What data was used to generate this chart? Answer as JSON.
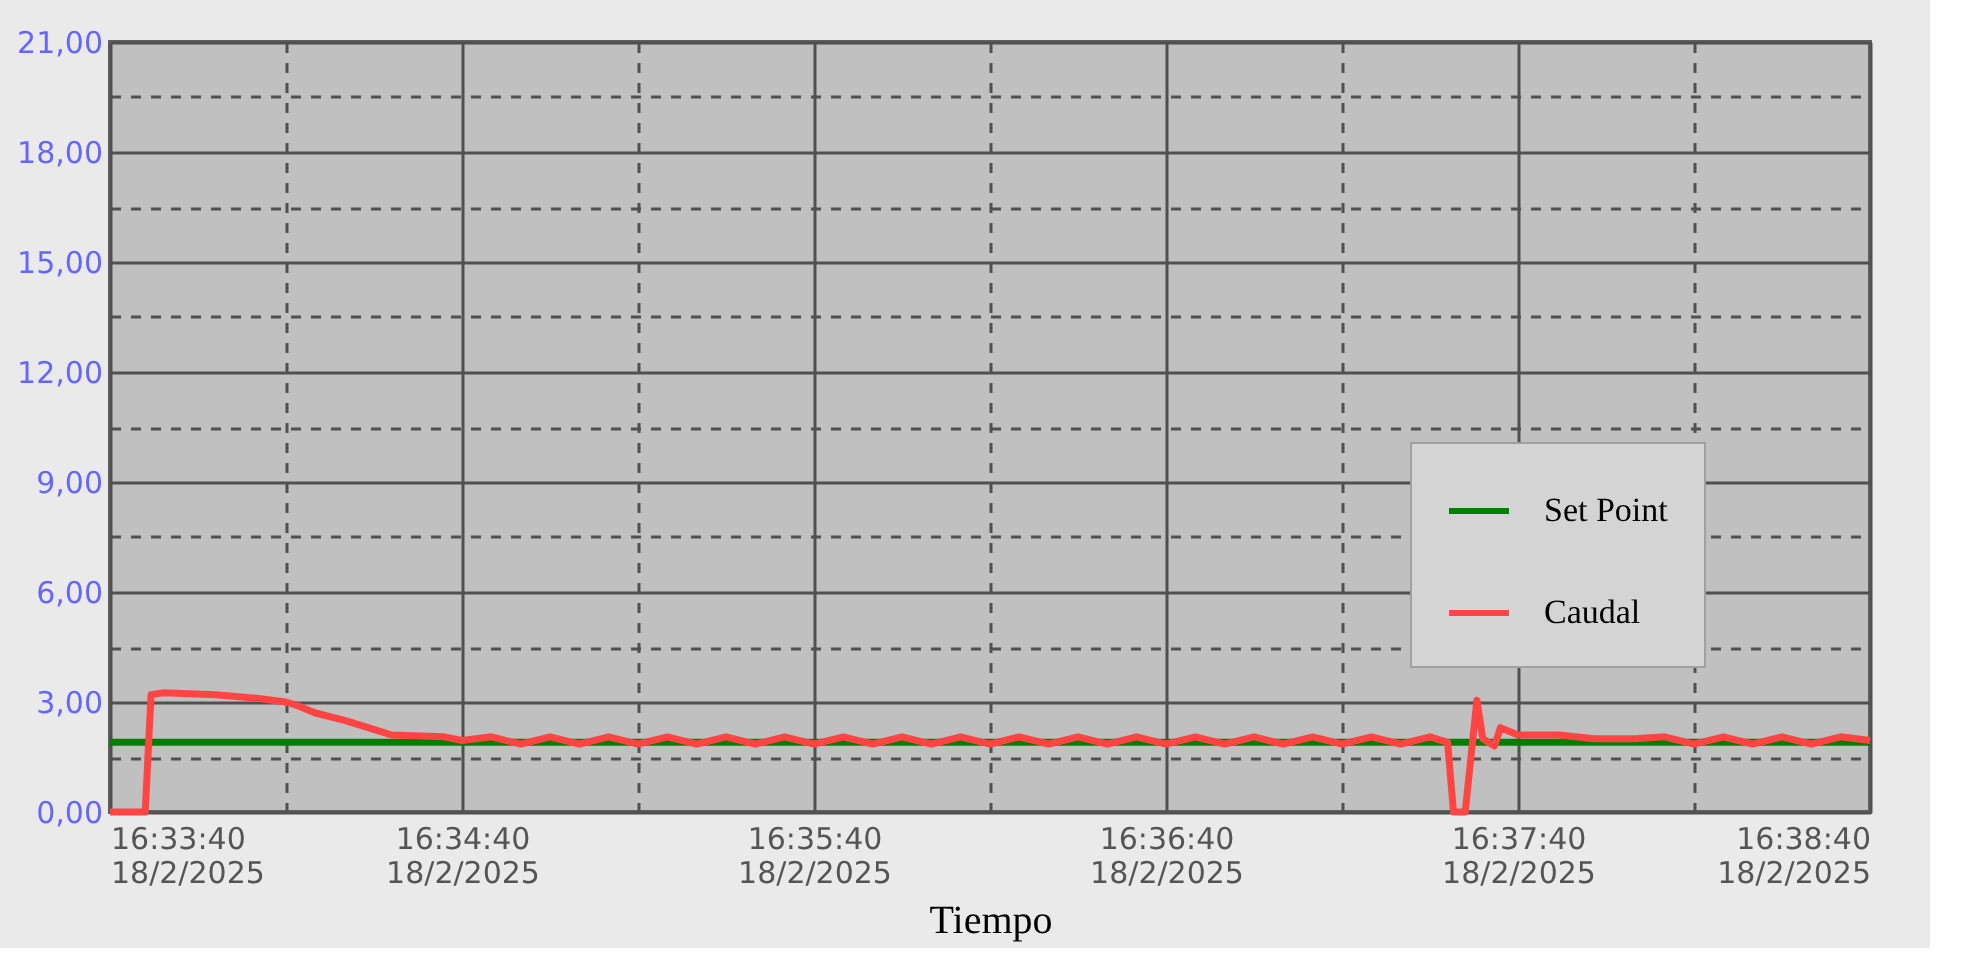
{
  "chart_data": {
    "type": "line",
    "xlabel": "Tiempo",
    "xlim": [
      "2025-02-18T16:33:40",
      "2025-02-18T16:38:40"
    ],
    "ylim": [
      0,
      21
    ],
    "xticks": [
      {
        "value": "2025-02-18T16:33:40",
        "label": "16:33:40\n18/2/2025"
      },
      {
        "value": "2025-02-18T16:34:10",
        "label": null
      },
      {
        "value": "2025-02-18T16:34:40",
        "label": "16:34:40\n18/2/2025"
      },
      {
        "value": "2025-02-18T16:35:10",
        "label": null
      },
      {
        "value": "2025-02-18T16:35:40",
        "label": "16:35:40\n18/2/2025"
      },
      {
        "value": "2025-02-18T16:36:10",
        "label": null
      },
      {
        "value": "2025-02-18T16:36:40",
        "label": "16:36:40\n18/2/2025"
      },
      {
        "value": "2025-02-18T16:37:10",
        "label": null
      },
      {
        "value": "2025-02-18T16:37:40",
        "label": "16:37:40\n18/2/2025"
      },
      {
        "value": "2025-02-18T16:38:10",
        "label": null
      },
      {
        "value": "2025-02-18T16:38:40",
        "label": "16:38:40\n18/2/2025"
      }
    ],
    "yticks": [
      {
        "value": 0,
        "label": "0,00"
      },
      {
        "value": 1.5,
        "label": null
      },
      {
        "value": 3,
        "label": "3,00"
      },
      {
        "value": 4.5,
        "label": null
      },
      {
        "value": 6,
        "label": "6,00"
      },
      {
        "value": 7.5,
        "label": null
      },
      {
        "value": 9,
        "label": "9,00"
      },
      {
        "value": 10.5,
        "label": null
      },
      {
        "value": 12,
        "label": "12,00"
      },
      {
        "value": 13.5,
        "label": null
      },
      {
        "value": 15,
        "label": "15,00"
      },
      {
        "value": 16.5,
        "label": null
      },
      {
        "value": 18,
        "label": "18,00"
      },
      {
        "value": 19.5,
        "label": null
      },
      {
        "value": 21,
        "label": "21,00"
      }
    ],
    "grid": true,
    "legend": "right",
    "series": [
      {
        "name": "Set Point",
        "color": "#008000",
        "x": [
          "2025-02-18T16:33:40",
          "2025-02-18T16:38:40"
        ],
        "values": [
          1.9,
          1.9
        ]
      },
      {
        "name": "Caudal",
        "color": "#ff4444",
        "x": [
          "2025-02-18T16:33:40",
          "2025-02-18T16:33:46",
          "2025-02-18T16:33:47",
          "2025-02-18T16:33:49",
          "2025-02-18T16:33:58",
          "2025-02-18T16:34:05",
          "2025-02-18T16:34:10",
          "2025-02-18T16:34:12",
          "2025-02-18T16:34:15",
          "2025-02-18T16:34:20",
          "2025-02-18T16:34:24",
          "2025-02-18T16:34:28",
          "2025-02-18T16:34:37",
          "2025-02-18T16:34:40",
          "2025-02-18T16:34:45",
          "2025-02-18T16:34:50",
          "2025-02-18T16:34:55",
          "2025-02-18T16:35:00",
          "2025-02-18T16:35:05",
          "2025-02-18T16:35:10",
          "2025-02-18T16:35:15",
          "2025-02-18T16:35:20",
          "2025-02-18T16:35:25",
          "2025-02-18T16:35:30",
          "2025-02-18T16:35:35",
          "2025-02-18T16:35:40",
          "2025-02-18T16:35:45",
          "2025-02-18T16:35:50",
          "2025-02-18T16:35:55",
          "2025-02-18T16:36:00",
          "2025-02-18T16:36:05",
          "2025-02-18T16:36:10",
          "2025-02-18T16:36:15",
          "2025-02-18T16:36:20",
          "2025-02-18T16:36:25",
          "2025-02-18T16:36:30",
          "2025-02-18T16:36:35",
          "2025-02-18T16:36:40",
          "2025-02-18T16:36:45",
          "2025-02-18T16:36:50",
          "2025-02-18T16:36:55",
          "2025-02-18T16:37:00",
          "2025-02-18T16:37:05",
          "2025-02-18T16:37:10",
          "2025-02-18T16:37:15",
          "2025-02-18T16:37:20",
          "2025-02-18T16:37:25",
          "2025-02-18T16:37:28",
          "2025-02-18T16:37:29",
          "2025-02-18T16:37:31",
          "2025-02-18T16:37:33",
          "2025-02-18T16:37:34",
          "2025-02-18T16:37:36",
          "2025-02-18T16:37:37",
          "2025-02-18T16:37:40",
          "2025-02-18T16:37:47",
          "2025-02-18T16:37:53",
          "2025-02-18T16:38:00",
          "2025-02-18T16:38:05",
          "2025-02-18T16:38:10",
          "2025-02-18T16:38:15",
          "2025-02-18T16:38:20",
          "2025-02-18T16:38:25",
          "2025-02-18T16:38:30",
          "2025-02-18T16:38:35",
          "2025-02-18T16:38:40"
        ],
        "values": [
          0,
          0,
          3.2,
          3.25,
          3.2,
          3.1,
          3.0,
          2.9,
          2.7,
          2.5,
          2.3,
          2.1,
          2.05,
          1.95,
          2.05,
          1.85,
          2.05,
          1.85,
          2.05,
          1.85,
          2.05,
          1.85,
          2.05,
          1.85,
          2.05,
          1.85,
          2.05,
          1.85,
          2.05,
          1.85,
          2.05,
          1.85,
          2.05,
          1.85,
          2.05,
          1.85,
          2.05,
          1.85,
          2.05,
          1.85,
          2.05,
          1.85,
          2.05,
          1.85,
          2.05,
          1.85,
          2.05,
          1.9,
          0,
          0,
          3.05,
          2.0,
          1.8,
          2.3,
          2.1,
          2.1,
          2.0,
          2.0,
          2.05,
          1.85,
          2.05,
          1.85,
          2.05,
          1.85,
          2.05,
          1.95
        ]
      }
    ]
  }
}
